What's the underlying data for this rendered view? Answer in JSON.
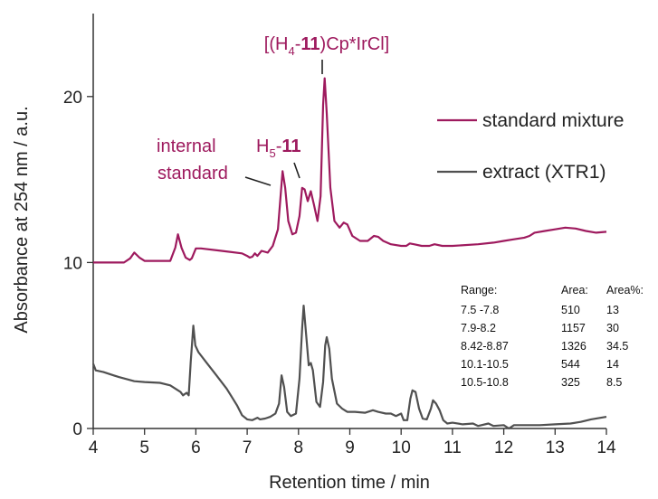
{
  "chart_data": {
    "type": "line",
    "xlabel": "Retention time / min",
    "ylabel": "Absorbance at 254 nm / a.u.",
    "xlim": [
      4,
      14
    ],
    "ylim": [
      0,
      25
    ],
    "xticks": [
      "4",
      "5",
      "6",
      "7",
      "8",
      "9",
      "10",
      "11",
      "12",
      "13",
      "14"
    ],
    "yticks": [
      "0",
      "10",
      "20"
    ],
    "grid": false,
    "legend_position": "right",
    "series": [
      {
        "name": "standard mixture",
        "color": "#9e1a5e",
        "points": [
          [
            4.0,
            10.0
          ],
          [
            4.6,
            10.0
          ],
          [
            4.72,
            10.25
          ],
          [
            4.8,
            10.6
          ],
          [
            4.9,
            10.3
          ],
          [
            5.0,
            10.1
          ],
          [
            5.5,
            10.1
          ],
          [
            5.6,
            10.9
          ],
          [
            5.65,
            11.7
          ],
          [
            5.72,
            10.9
          ],
          [
            5.8,
            10.3
          ],
          [
            5.88,
            10.15
          ],
          [
            5.92,
            10.25
          ],
          [
            6.0,
            10.85
          ],
          [
            6.1,
            10.85
          ],
          [
            6.5,
            10.7
          ],
          [
            6.9,
            10.55
          ],
          [
            7.0,
            10.4
          ],
          [
            7.05,
            10.3
          ],
          [
            7.1,
            10.35
          ],
          [
            7.15,
            10.55
          ],
          [
            7.2,
            10.4
          ],
          [
            7.28,
            10.7
          ],
          [
            7.4,
            10.6
          ],
          [
            7.5,
            11.0
          ],
          [
            7.6,
            12.0
          ],
          [
            7.65,
            14.0
          ],
          [
            7.69,
            15.5
          ],
          [
            7.74,
            14.5
          ],
          [
            7.8,
            12.5
          ],
          [
            7.88,
            11.7
          ],
          [
            7.95,
            11.8
          ],
          [
            8.02,
            12.8
          ],
          [
            8.07,
            14.5
          ],
          [
            8.12,
            14.4
          ],
          [
            8.18,
            13.7
          ],
          [
            8.24,
            14.3
          ],
          [
            8.3,
            13.5
          ],
          [
            8.37,
            12.5
          ],
          [
            8.43,
            14.0
          ],
          [
            8.48,
            19.5
          ],
          [
            8.51,
            21.1
          ],
          [
            8.55,
            19.0
          ],
          [
            8.62,
            14.5
          ],
          [
            8.7,
            12.5
          ],
          [
            8.8,
            12.1
          ],
          [
            8.88,
            12.4
          ],
          [
            8.95,
            12.3
          ],
          [
            9.05,
            11.6
          ],
          [
            9.2,
            11.3
          ],
          [
            9.35,
            11.3
          ],
          [
            9.47,
            11.6
          ],
          [
            9.55,
            11.55
          ],
          [
            9.65,
            11.3
          ],
          [
            9.8,
            11.1
          ],
          [
            10.0,
            11.0
          ],
          [
            10.1,
            11.0
          ],
          [
            10.17,
            11.15
          ],
          [
            10.25,
            11.1
          ],
          [
            10.4,
            11.0
          ],
          [
            10.55,
            11.0
          ],
          [
            10.65,
            11.1
          ],
          [
            10.8,
            11.0
          ],
          [
            11.0,
            11.0
          ],
          [
            11.5,
            11.1
          ],
          [
            11.8,
            11.2
          ],
          [
            12.0,
            11.3
          ],
          [
            12.2,
            11.4
          ],
          [
            12.4,
            11.5
          ],
          [
            12.5,
            11.6
          ],
          [
            12.6,
            11.8
          ],
          [
            12.8,
            11.9
          ],
          [
            13.0,
            12.0
          ],
          [
            13.2,
            12.1
          ],
          [
            13.4,
            12.05
          ],
          [
            13.6,
            11.9
          ],
          [
            13.8,
            11.8
          ],
          [
            14.0,
            11.85
          ]
        ]
      },
      {
        "name": "extract (XTR1)",
        "color": "#505050",
        "points": [
          [
            4.0,
            3.9
          ],
          [
            4.05,
            3.5
          ],
          [
            4.2,
            3.4
          ],
          [
            4.5,
            3.1
          ],
          [
            4.8,
            2.85
          ],
          [
            5.0,
            2.8
          ],
          [
            5.3,
            2.75
          ],
          [
            5.5,
            2.6
          ],
          [
            5.7,
            2.2
          ],
          [
            5.75,
            2.0
          ],
          [
            5.82,
            2.15
          ],
          [
            5.86,
            2.0
          ],
          [
            5.9,
            4.0
          ],
          [
            5.95,
            6.2
          ],
          [
            5.99,
            5.0
          ],
          [
            6.05,
            4.6
          ],
          [
            6.2,
            4.0
          ],
          [
            6.4,
            3.2
          ],
          [
            6.6,
            2.4
          ],
          [
            6.8,
            1.4
          ],
          [
            6.9,
            0.8
          ],
          [
            7.0,
            0.55
          ],
          [
            7.1,
            0.5
          ],
          [
            7.2,
            0.65
          ],
          [
            7.25,
            0.55
          ],
          [
            7.35,
            0.6
          ],
          [
            7.45,
            0.7
          ],
          [
            7.55,
            0.9
          ],
          [
            7.62,
            1.5
          ],
          [
            7.67,
            3.2
          ],
          [
            7.72,
            2.5
          ],
          [
            7.78,
            1.0
          ],
          [
            7.85,
            0.75
          ],
          [
            7.95,
            0.9
          ],
          [
            8.02,
            3.0
          ],
          [
            8.07,
            6.0
          ],
          [
            8.1,
            7.4
          ],
          [
            8.14,
            6.0
          ],
          [
            8.2,
            3.8
          ],
          [
            8.24,
            3.95
          ],
          [
            8.28,
            3.5
          ],
          [
            8.35,
            1.6
          ],
          [
            8.42,
            1.3
          ],
          [
            8.48,
            2.8
          ],
          [
            8.52,
            5.0
          ],
          [
            8.55,
            5.5
          ],
          [
            8.6,
            4.8
          ],
          [
            8.65,
            3.0
          ],
          [
            8.75,
            1.5
          ],
          [
            8.85,
            1.2
          ],
          [
            8.95,
            1.0
          ],
          [
            9.1,
            1.0
          ],
          [
            9.3,
            0.95
          ],
          [
            9.45,
            1.1
          ],
          [
            9.55,
            1.0
          ],
          [
            9.7,
            0.9
          ],
          [
            9.8,
            0.9
          ],
          [
            9.9,
            0.75
          ],
          [
            10.0,
            0.9
          ],
          [
            10.05,
            0.5
          ],
          [
            10.12,
            0.5
          ],
          [
            10.18,
            1.8
          ],
          [
            10.22,
            2.3
          ],
          [
            10.28,
            2.2
          ],
          [
            10.35,
            1.2
          ],
          [
            10.42,
            0.6
          ],
          [
            10.5,
            0.55
          ],
          [
            10.58,
            1.2
          ],
          [
            10.62,
            1.7
          ],
          [
            10.68,
            1.5
          ],
          [
            10.75,
            1.1
          ],
          [
            10.82,
            0.5
          ],
          [
            10.9,
            0.3
          ],
          [
            11.0,
            0.35
          ],
          [
            11.2,
            0.25
          ],
          [
            11.4,
            0.3
          ],
          [
            11.5,
            0.15
          ],
          [
            11.7,
            0.3
          ],
          [
            11.8,
            0.15
          ],
          [
            12.0,
            0.2
          ],
          [
            12.1,
            0.0
          ],
          [
            12.2,
            0.2
          ],
          [
            12.4,
            0.2
          ],
          [
            12.7,
            0.2
          ],
          [
            13.0,
            0.25
          ],
          [
            13.3,
            0.3
          ],
          [
            13.5,
            0.4
          ],
          [
            13.7,
            0.55
          ],
          [
            14.0,
            0.7
          ]
        ]
      }
    ],
    "annotations": {
      "complex_label_pre": "[(H",
      "complex_label_sub": "4",
      "complex_label_dash": "-",
      "complex_label_bold": "11",
      "complex_label_post": ")Cp*IrCl]",
      "h5_label_pre": "H",
      "h5_label_sub": "5",
      "h5_label_dash": "-",
      "h5_label_bold": "11",
      "internal_line1": "internal",
      "internal_line2": "standard"
    },
    "table": {
      "headers": [
        "Range:",
        "Area:",
        "Area%:"
      ],
      "rows": [
        [
          "7.5 -7.8",
          "510",
          "13"
        ],
        [
          "7.9-8.2",
          "1157",
          "30"
        ],
        [
          "8.42-8.87",
          "1326",
          "34.5"
        ],
        [
          "10.1-10.5",
          "544",
          "14"
        ],
        [
          "10.5-10.8",
          "325",
          "8.5"
        ]
      ]
    }
  }
}
